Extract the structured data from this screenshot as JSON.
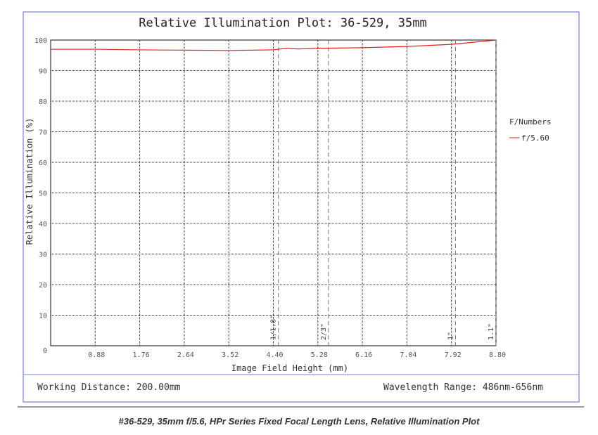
{
  "caption": "#36-529, 35mm f/5.6, HPr Series Fixed Focal Length Lens, Relative Illumination Plot",
  "footer": {
    "working_distance": "Working Distance: 200.00mm",
    "wavelength": "Wavelength Range: 486nm-656nm"
  },
  "chart_data": {
    "type": "line",
    "title": "Relative Illumination Plot: 36-529, 35mm",
    "xlabel": "Image Field Height (mm)",
    "ylabel": "Relative Illumination (%)",
    "xlim": [
      0,
      8.8
    ],
    "ylim": [
      0,
      100
    ],
    "xticks": [
      "0.88",
      "1.76",
      "2.64",
      "3.52",
      "4.40",
      "5.28",
      "6.16",
      "7.04",
      "7.92",
      "8.80"
    ],
    "yticks": [
      "0",
      "10",
      "20",
      "30",
      "40",
      "50",
      "60",
      "70",
      "80",
      "90",
      "100"
    ],
    "grid": true,
    "legend": {
      "title": "F/Numbers",
      "placement": "right"
    },
    "series": [
      {
        "name": "f/5.60",
        "color": "#e02020",
        "x": [
          0,
          0.88,
          1.76,
          2.64,
          3.52,
          4.4,
          4.65,
          4.9,
          5.28,
          6.16,
          7.04,
          7.92,
          8.8
        ],
        "y": [
          97.0,
          97.0,
          96.8,
          96.7,
          96.6,
          96.8,
          97.3,
          97.1,
          97.3,
          97.5,
          97.9,
          98.6,
          100
        ]
      }
    ],
    "sensor_markers": [
      {
        "label": "1/1.8\"",
        "x": 4.5
      },
      {
        "label": "2/3\"",
        "x": 5.49
      },
      {
        "label": "1\"",
        "x": 8.0
      },
      {
        "label": "1.1\"",
        "x": 8.8
      }
    ]
  }
}
